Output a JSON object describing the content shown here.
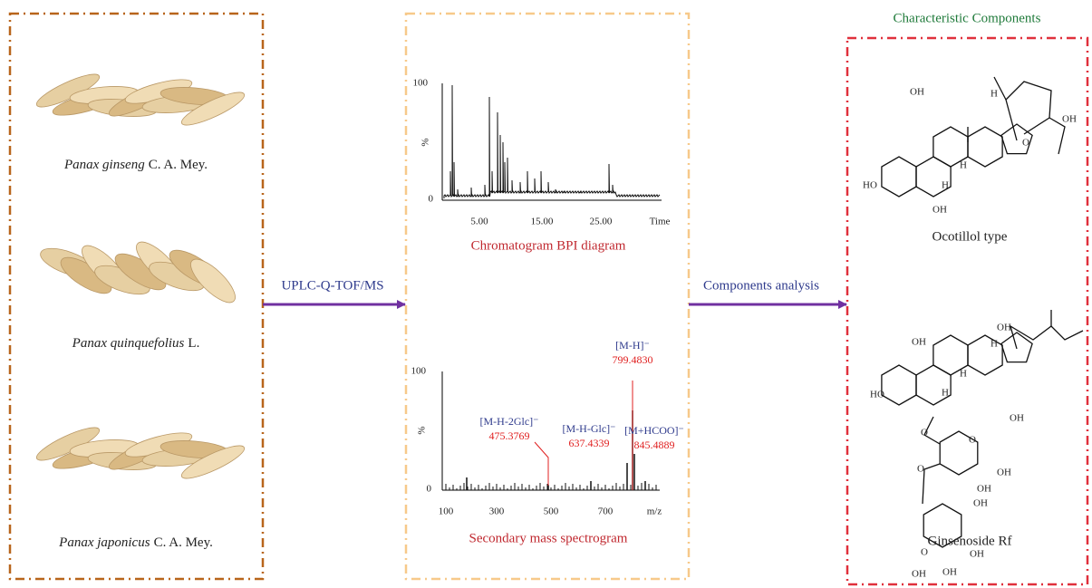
{
  "herbs": [
    {
      "species": "Panax ginseng",
      "authority": "C. A. Mey."
    },
    {
      "species": "Panax quinquefolius",
      "authority": "L."
    },
    {
      "species": "Panax japonicus",
      "authority": "C. A. Mey."
    }
  ],
  "arrows": {
    "method": "UPLC-Q-TOF/MS",
    "analysis": "Components analysis"
  },
  "chromatogram": {
    "caption": "Chromatogram BPI diagram",
    "y_top": "100",
    "y_unit": "%",
    "y_zero": "0",
    "x_labels": [
      "5.00",
      "15.00",
      "25.00",
      "Time"
    ]
  },
  "spectrum": {
    "caption": "Secondary mass spectrogram",
    "y_top": "100",
    "y_unit": "%",
    "y_zero": "0",
    "x_labels": [
      "100",
      "300",
      "500",
      "700",
      "m/z"
    ],
    "ions": [
      {
        "ion": "[M-H]⁻",
        "mz": "799.4830"
      },
      {
        "ion": "[M-H-2Glc]⁻",
        "mz": "475.3769"
      },
      {
        "ion": "[M-H-Glc]⁻",
        "mz": "637.4339"
      },
      {
        "ion": "[M+HCOO]⁻",
        "mz": "845.4889"
      }
    ]
  },
  "components": {
    "title": "Characteristic Components",
    "structures": [
      {
        "name": "Ocotillol type",
        "labels": [
          "OH",
          "H",
          "O",
          "OH",
          "H",
          "H",
          "HO",
          "OH"
        ]
      },
      {
        "name": "Ginsenoside Rf",
        "labels": [
          "OH",
          "OH",
          "H",
          "H",
          "H",
          "HO",
          "O",
          "O",
          "OH",
          "OH",
          "O",
          "OH",
          "OH",
          "O",
          "OH",
          "OH",
          "OH"
        ]
      }
    ]
  }
}
